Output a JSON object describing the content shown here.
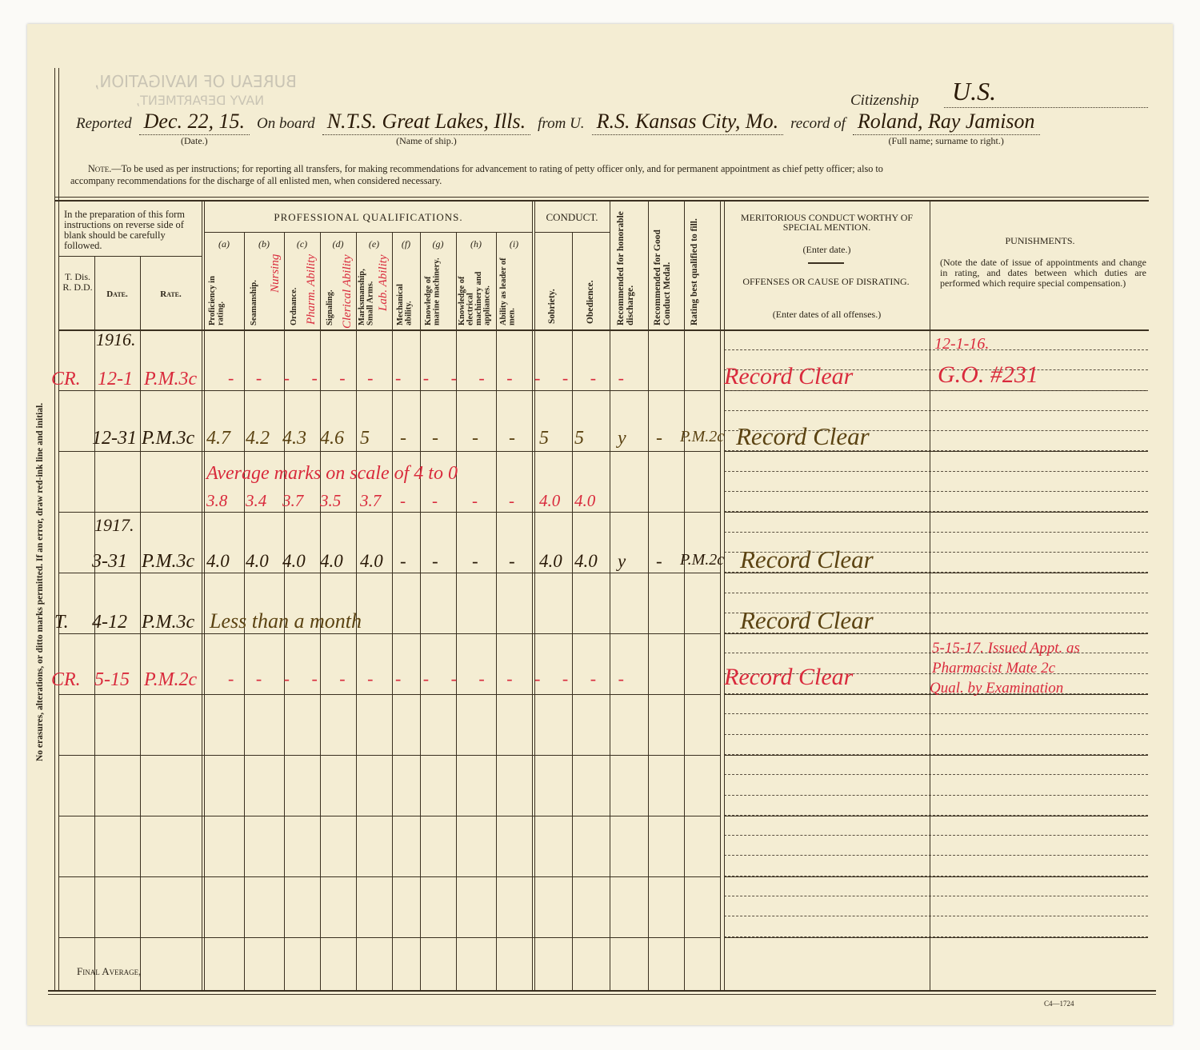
{
  "ghost_text": {
    "bureau": "BUREAU OF NAVIGATION,",
    "department": "NAVY DEPARTMENT,"
  },
  "header": {
    "reported_label": "Reported",
    "reported_value": "Dec. 22, 15.",
    "date_caption": "(Date.)",
    "on_board_label": "On board",
    "on_board_value": "N.T.S. Great Lakes, Ills.",
    "ship_caption": "(Name of ship.)",
    "from_label": "from U.",
    "from_value": "R.S. Kansas City, Mo.",
    "record_label": "record of",
    "record_value": "Roland, Ray Jamison",
    "name_caption": "(Full name; surname to right.)",
    "citizenship_label": "Citizenship",
    "citizenship_value": "U.S.",
    "note_label": "Note.",
    "note_text_1": "—To be used as per instructions; for reporting all transfers, for making recommendations for advancement to rating of petty officer only, and for permanent appointment as chief petty officer; also to",
    "note_text_2": "accompany recommendations for the discharge of all enlisted men, when considered necessary."
  },
  "margin_note": "No erasures, alterations, or ditto marks permitted.   If an error, draw red-ink line and initial.",
  "table_header": {
    "instructions": "In the preparation of this form instructions on reverse side of blank should be carefully followed.",
    "tdis": "T. Dis. R. D.D.",
    "date": "Date.",
    "rate": "Rate.",
    "professional": "PROFESSIONAL QUALIFICATIONS.",
    "conduct": "CONDUCT.",
    "prof_columns": [
      {
        "letter": "(a)",
        "label": "Proficiency in rating."
      },
      {
        "letter": "(b)",
        "label": "Seamanship."
      },
      {
        "letter": "(c)",
        "label": "Ordnance."
      },
      {
        "letter": "(d)",
        "label": "Signaling."
      },
      {
        "letter": "(e)",
        "label": "Marksmanship, Small Arms."
      },
      {
        "letter": "(f)",
        "label": "Mechanical ability."
      },
      {
        "letter": "(g)",
        "label": "Knowledge of marine machinery."
      },
      {
        "letter": "(h)",
        "label": "Knowledge of electrical machinery and appliances."
      },
      {
        "letter": "(i)",
        "label": "Ability as leader of men."
      }
    ],
    "prof_annotations": [
      "Nursing",
      "Pharm. Ability",
      "Clerical Ability",
      "Lab. Ability"
    ],
    "conduct_columns": [
      "Sobriety.",
      "Obedience."
    ],
    "honorable": "Recommended for honorable discharge.",
    "good_conduct": "Recommended for Good Conduct Medal.",
    "rating_best": "Rating best qualified to fill.",
    "meritorious_1": "MERITORIOUS CONDUCT WORTHY OF SPECIAL MENTION.",
    "meritorious_2": "(Enter date.)",
    "offenses_1": "OFFENSES OR CAUSE OF DISRATING.",
    "offenses_2": "(Enter dates of all offenses.)",
    "punishments": "PUNISHMENTS.",
    "punishments_note": "(Note the date of issue of appointments and change in rating, and dates between which duties are performed which require special compensation.)"
  },
  "entries": {
    "year_1916": "1916.",
    "year_1917": "1917.",
    "row1": {
      "code": "CR.",
      "date": "12-1",
      "rate": "P.M.3c",
      "marks": "- - - - - - - - - - - - - - -",
      "offenses": "Record Clear",
      "punish_date": "12-1-16.",
      "punishment": "G.O. #231"
    },
    "row2": {
      "date": "12-31",
      "rate": "P.M.3c",
      "marks": [
        "4.7",
        "4.2",
        "4.3",
        "4.6",
        "5",
        "-",
        "-",
        "-",
        "-"
      ],
      "sobriety": "5",
      "obedience": "5",
      "honorable": "y",
      "good_conduct": "-",
      "rating_best": "P.M.2c",
      "offenses": "Record Clear"
    },
    "avg_note": "Average marks on scale of 4 to 0",
    "avg_row": {
      "marks": [
        "3.8",
        "3.4",
        "3.7",
        "3.5",
        "3.7",
        "-",
        "-",
        "-",
        "-"
      ],
      "sobriety": "4.0",
      "obedience": "4.0"
    },
    "row3": {
      "date": "3-31",
      "rate": "P.M.3c",
      "marks": [
        "4.0",
        "4.0",
        "4.0",
        "4.0",
        "4.0",
        "-",
        "-",
        "-",
        "-"
      ],
      "sobriety": "4.0",
      "obedience": "4.0",
      "honorable": "y",
      "good_conduct": "-",
      "rating_best": "P.M.2c",
      "offenses": "Record Clear"
    },
    "row4": {
      "code": "T.",
      "date": "4-12",
      "rate": "P.M.3c",
      "note": "Less than a month",
      "offenses": "Record Clear"
    },
    "row5": {
      "code": "CR.",
      "date": "5-15",
      "rate": "P.M.2c",
      "marks": "- - - - - - - - - - - - - - -",
      "offenses": "Record Clear",
      "punishment_lines": [
        "5-15-17. Issued Appt. as",
        "Pharmacist Mate 2c",
        "Qual. by Examination"
      ]
    }
  },
  "footer": {
    "final_average": "Final Average,",
    "form_number": "C4—1724"
  },
  "colors": {
    "paper": "#f4edd3",
    "red_ink": "#d92a3c",
    "black_ink": "#2a1a08",
    "brown_ink": "#5b4312"
  }
}
